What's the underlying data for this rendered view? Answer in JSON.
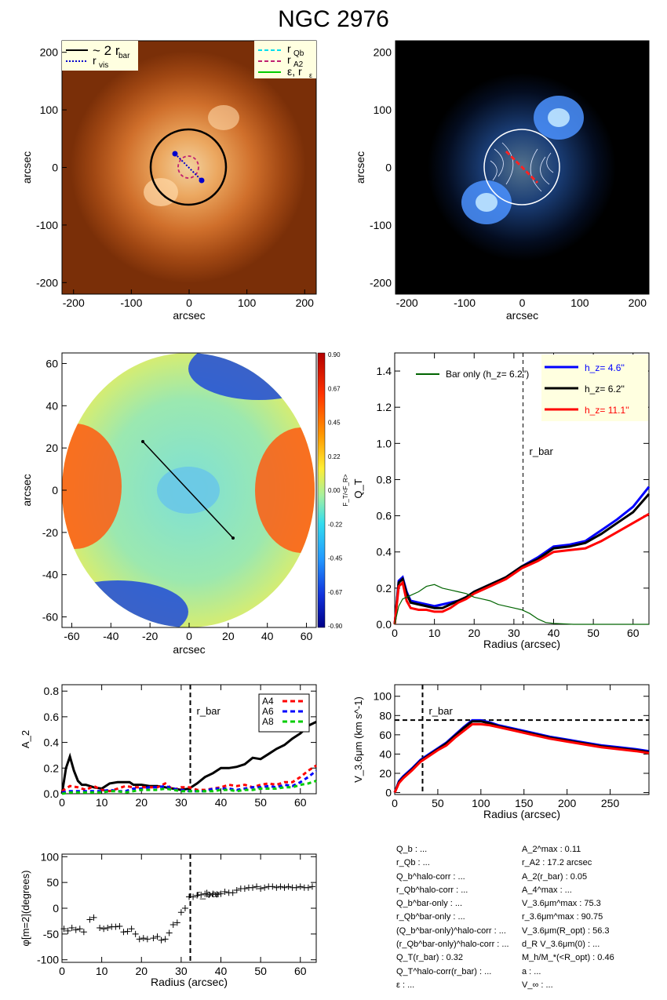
{
  "title": "NGC 2976",
  "colors": {
    "orange_bg": "#7a2f08",
    "blue_bg": "#000000",
    "hz_4_6": "#0000ff",
    "hz_6_2": "#000000",
    "hz_11_1": "#ff0000",
    "bar_only": "#006400",
    "legend_bg": "#ffffe0",
    "a4": "#ff0000",
    "a6": "#0000ff",
    "a8": "#00cc00"
  },
  "panel_images": {
    "tick_x": [
      "-200",
      "-100",
      "0",
      "100",
      "200"
    ],
    "tick_y": [
      "200",
      "100",
      "0",
      "-100",
      "-200"
    ],
    "xlabel": "arcsec",
    "ylabel": "arcsec",
    "legend_left": {
      "bar": "~ 2 r",
      "bar_sub": "bar",
      "vis": "r",
      "vis_sub": "vis"
    },
    "legend_right": {
      "qb": "r",
      "qb_sub": "Qb",
      "a2": "r",
      "a2_sub": "A2",
      "eps": "ε, r",
      "eps_sub": "ε"
    }
  },
  "panel_ratio": {
    "tick_x": [
      "-60",
      "-40",
      "-20",
      "0",
      "20",
      "40",
      "60"
    ],
    "tick_y": [
      "60",
      "40",
      "20",
      "0",
      "-20",
      "-40",
      "-60"
    ],
    "xlabel": "arcsec",
    "ylabel": "arcsec",
    "colorbar_ticks": [
      "0.90",
      "0.67",
      "0.45",
      "0.22",
      "0.00",
      "-0.22",
      "-0.45",
      "-0.67",
      "-0.90"
    ],
    "colorbar_label": "F_T/<F_R>"
  },
  "chart_data": [
    {
      "type": "line",
      "name": "QT",
      "ylabel": "Q_T",
      "xlabel": "Radius (arcsec)",
      "xlim": [
        0,
        64
      ],
      "ylim": [
        0,
        1.5
      ],
      "x_ticks": [
        0,
        10,
        20,
        30,
        40,
        50,
        60
      ],
      "y_ticks": [
        "0.0",
        "0.2",
        "0.4",
        "0.6",
        "0.8",
        "1.0",
        "1.2",
        "1.4"
      ],
      "vline": {
        "x": 32.3,
        "label": "r_bar"
      },
      "bar_only_label": "Bar only (h_z=  6.2'')",
      "series": [
        {
          "name": "h_z=  4.6''",
          "color": "#0000ff",
          "x": [
            0,
            1,
            2,
            3,
            4,
            6,
            8,
            10,
            12,
            14,
            16,
            18,
            20,
            24,
            28,
            32,
            36,
            40,
            44,
            48,
            52,
            56,
            60,
            64
          ],
          "y": [
            0,
            0.24,
            0.26,
            0.18,
            0.13,
            0.12,
            0.11,
            0.1,
            0.11,
            0.12,
            0.13,
            0.15,
            0.18,
            0.22,
            0.26,
            0.32,
            0.37,
            0.43,
            0.44,
            0.46,
            0.52,
            0.58,
            0.65,
            0.76
          ]
        },
        {
          "name": "h_z=  6.2''",
          "color": "#000000",
          "x": [
            0,
            1,
            2,
            3,
            4,
            6,
            8,
            10,
            12,
            14,
            16,
            18,
            20,
            24,
            28,
            32,
            36,
            40,
            44,
            48,
            52,
            56,
            60,
            64
          ],
          "y": [
            0,
            0.23,
            0.25,
            0.17,
            0.12,
            0.11,
            0.1,
            0.09,
            0.09,
            0.11,
            0.13,
            0.15,
            0.18,
            0.22,
            0.26,
            0.32,
            0.36,
            0.42,
            0.43,
            0.45,
            0.5,
            0.56,
            0.62,
            0.72
          ]
        },
        {
          "name": "h_z= 11.1''",
          "color": "#ff0000",
          "x": [
            0,
            1,
            2,
            3,
            4,
            6,
            8,
            10,
            12,
            14,
            16,
            18,
            20,
            24,
            28,
            32,
            36,
            40,
            44,
            48,
            52,
            56,
            60,
            64
          ],
          "y": [
            0,
            0.21,
            0.23,
            0.13,
            0.09,
            0.08,
            0.08,
            0.07,
            0.07,
            0.09,
            0.12,
            0.14,
            0.17,
            0.21,
            0.25,
            0.31,
            0.35,
            0.4,
            0.41,
            0.42,
            0.46,
            0.51,
            0.56,
            0.61
          ]
        },
        {
          "name": "Bar only",
          "color": "#006400",
          "x": [
            0,
            1,
            2,
            3,
            4,
            6,
            8,
            10,
            12,
            14,
            16,
            18,
            20,
            22,
            24,
            26,
            28,
            30,
            32,
            34,
            36,
            38,
            40,
            45,
            50,
            55,
            60,
            64
          ],
          "y": [
            0,
            0.1,
            0.14,
            0.15,
            0.16,
            0.18,
            0.21,
            0.22,
            0.2,
            0.19,
            0.18,
            0.17,
            0.15,
            0.14,
            0.13,
            0.11,
            0.1,
            0.09,
            0.08,
            0.06,
            0.03,
            0.01,
            0.005,
            0,
            0,
            0,
            0,
            0
          ]
        }
      ]
    },
    {
      "type": "line",
      "name": "A2",
      "ylabel": "A_2",
      "xlabel": "",
      "xlim": [
        0,
        64
      ],
      "ylim": [
        0,
        0.85
      ],
      "x_ticks": [
        0,
        10,
        20,
        30,
        40,
        50,
        60
      ],
      "y_ticks": [
        "0.0",
        "0.2",
        "0.4",
        "0.6",
        "0.8"
      ],
      "vline": {
        "x": 32.3,
        "label": "r_bar"
      },
      "legend": [
        "A4",
        "A6",
        "A8"
      ],
      "series": [
        {
          "name": "A2",
          "color": "#000000",
          "dash": false,
          "x": [
            0,
            1,
            2,
            3,
            4,
            5,
            6,
            8,
            10,
            12,
            14,
            16,
            17,
            18,
            20,
            22,
            24,
            26,
            28,
            30,
            32,
            34,
            36,
            38,
            40,
            42,
            44,
            46,
            48,
            50,
            52,
            54,
            56,
            58,
            60,
            62,
            64
          ],
          "y": [
            0,
            0.2,
            0.29,
            0.18,
            0.1,
            0.07,
            0.07,
            0.05,
            0.04,
            0.08,
            0.09,
            0.09,
            0.09,
            0.07,
            0.07,
            0.06,
            0.06,
            0.05,
            0.04,
            0.03,
            0.04,
            0.08,
            0.13,
            0.16,
            0.2,
            0.2,
            0.21,
            0.23,
            0.28,
            0.27,
            0.31,
            0.35,
            0.38,
            0.43,
            0.47,
            0.53,
            0.56
          ]
        },
        {
          "name": "A4",
          "color": "#ff0000",
          "dash": true,
          "x": [
            0,
            2,
            4,
            6,
            8,
            10,
            12,
            14,
            16,
            18,
            20,
            22,
            24,
            26,
            28,
            30,
            32,
            34,
            36,
            38,
            40,
            42,
            44,
            46,
            48,
            50,
            52,
            54,
            56,
            58,
            60,
            62,
            64
          ],
          "y": [
            0.02,
            0.06,
            0.05,
            0.03,
            0.06,
            0.03,
            0.02,
            0.04,
            0.06,
            0.05,
            0.05,
            0.05,
            0.05,
            0.08,
            0.03,
            0.05,
            0.05,
            0.03,
            0.03,
            0.04,
            0.05,
            0.07,
            0.06,
            0.07,
            0.05,
            0.07,
            0.08,
            0.07,
            0.09,
            0.09,
            0.13,
            0.18,
            0.22
          ]
        },
        {
          "name": "A6",
          "color": "#0000ff",
          "dash": true,
          "x": [
            0,
            2,
            4,
            6,
            8,
            10,
            12,
            14,
            16,
            18,
            20,
            22,
            24,
            26,
            28,
            30,
            32,
            34,
            36,
            38,
            40,
            42,
            44,
            46,
            48,
            50,
            52,
            54,
            56,
            58,
            60,
            62,
            64
          ],
          "y": [
            0.01,
            0.02,
            0.02,
            0.02,
            0.02,
            0.02,
            0.03,
            0.02,
            0.02,
            0.04,
            0.04,
            0.05,
            0.05,
            0.06,
            0.04,
            0.03,
            0.02,
            0.02,
            0.02,
            0.04,
            0.04,
            0.04,
            0.03,
            0.04,
            0.05,
            0.05,
            0.06,
            0.05,
            0.07,
            0.06,
            0.09,
            0.13,
            0.18
          ]
        },
        {
          "name": "A8",
          "color": "#00cc00",
          "dash": true,
          "x": [
            0,
            2,
            4,
            6,
            8,
            10,
            12,
            14,
            16,
            18,
            20,
            22,
            24,
            26,
            28,
            30,
            32,
            34,
            36,
            38,
            40,
            42,
            44,
            46,
            48,
            50,
            52,
            54,
            56,
            58,
            60,
            62,
            64
          ],
          "y": [
            0,
            0.01,
            0.01,
            0.01,
            0.01,
            0.01,
            0.02,
            0.02,
            0.01,
            0.02,
            0.03,
            0.03,
            0.03,
            0.04,
            0.03,
            0.02,
            0.02,
            0.02,
            0.02,
            0.02,
            0.03,
            0.03,
            0.02,
            0.03,
            0.03,
            0.04,
            0.04,
            0.04,
            0.05,
            0.05,
            0.07,
            0.08,
            0.1
          ]
        }
      ]
    },
    {
      "type": "line",
      "name": "Vc",
      "ylabel": "V_3.6μm  (km s^-1)",
      "xlabel": "Radius (arcsec)",
      "xlim": [
        0,
        295
      ],
      "ylim": [
        -2,
        112
      ],
      "x_ticks": [
        0,
        50,
        100,
        150,
        200,
        250
      ],
      "y_ticks": [
        "0",
        "20",
        "40",
        "60",
        "80",
        "100"
      ],
      "vline": {
        "x": 32.3,
        "label": "r_bar"
      },
      "hline": {
        "y": 75.3
      },
      "series": [
        {
          "name": "blue",
          "color": "#0000ff",
          "x": [
            0,
            5,
            10,
            20,
            30,
            40,
            50,
            60,
            70,
            80,
            90,
            100,
            110,
            120,
            140,
            160,
            180,
            200,
            220,
            240,
            260,
            280,
            295
          ],
          "y": [
            0,
            12,
            17,
            25,
            34,
            40,
            46,
            52,
            60,
            68,
            75,
            75,
            73,
            70,
            66,
            62,
            58,
            55,
            52,
            49,
            47,
            45,
            43
          ]
        },
        {
          "name": "black",
          "color": "#000000",
          "x": [
            0,
            5,
            10,
            20,
            30,
            40,
            50,
            60,
            70,
            80,
            90,
            100,
            110,
            120,
            140,
            160,
            180,
            200,
            220,
            240,
            260,
            280,
            295
          ],
          "y": [
            0,
            11,
            16,
            24,
            33,
            39,
            45,
            51,
            59,
            67,
            74,
            74,
            72,
            69,
            65,
            61,
            57,
            54,
            51,
            48,
            46,
            44,
            42
          ]
        },
        {
          "name": "red",
          "color": "#ff0000",
          "x": [
            0,
            5,
            10,
            20,
            30,
            40,
            50,
            60,
            70,
            80,
            90,
            100,
            110,
            120,
            140,
            160,
            180,
            200,
            220,
            240,
            260,
            280,
            295
          ],
          "y": [
            0,
            10,
            15,
            23,
            32,
            38,
            44,
            49,
            57,
            64,
            71,
            71,
            70,
            68,
            64,
            60,
            56,
            53,
            50,
            47,
            45,
            43,
            41
          ]
        }
      ]
    },
    {
      "type": "scatter",
      "name": "phase",
      "ylabel": "φ[m=2](degrees)",
      "xlabel": "Radius (arcsec)",
      "xlim": [
        0,
        64
      ],
      "ylim": [
        -105,
        105
      ],
      "x_ticks": [
        0,
        10,
        20,
        30,
        40,
        50,
        60
      ],
      "y_ticks": [
        "100",
        "50",
        "0",
        "-50",
        "-100"
      ],
      "vline": {
        "x": 32.3,
        "label": "r_bar"
      },
      "x": [
        0.5,
        1.5,
        2.5,
        3.5,
        4.5,
        5.5,
        7,
        8,
        9.5,
        10.5,
        11.5,
        12.5,
        13.5,
        14.5,
        15.5,
        16.5,
        17.5,
        18.5,
        19.5,
        20.5,
        21.5,
        23,
        24,
        25,
        26,
        27,
        28,
        29,
        30,
        31,
        32,
        33,
        34,
        35,
        36,
        37,
        38,
        39,
        40,
        41,
        42,
        43,
        44,
        45,
        46,
        47,
        48,
        49,
        50,
        51,
        52,
        53,
        54,
        55,
        56,
        57,
        58,
        59,
        60,
        61,
        62,
        63
      ],
      "y": [
        -40,
        -44,
        -38,
        -42,
        -40,
        -46,
        -22,
        -18,
        -38,
        -40,
        -38,
        -36,
        -36,
        -35,
        -46,
        -45,
        -40,
        -50,
        -60,
        -58,
        -60,
        -58,
        -55,
        -62,
        -60,
        -48,
        -32,
        -28,
        -8,
        0,
        22,
        22,
        25,
        26,
        28,
        26,
        28,
        27,
        28,
        32,
        30,
        30,
        35,
        38,
        38,
        40,
        40,
        42,
        38,
        40,
        42,
        42,
        40,
        42,
        40,
        42,
        40,
        40,
        42,
        40,
        40,
        42
      ]
    }
  ],
  "info_left": [
    "Q_b : ...",
    "r_Qb : ...",
    "Q_b^halo-corr : ...",
    "r_Qb^halo-corr : ...",
    "Q_b^bar-only : ...",
    "r_Qb^bar-only : ...",
    "(Q_b^bar-only)^halo-corr : ...",
    "(r_Qb^bar-only)^halo-corr : ...",
    "Q_T(r_bar) :  0.32",
    "Q_T^halo-corr(r_bar) : ...",
    "ε : ..."
  ],
  "info_right": [
    "A_2^max :  0.11",
    "r_A2 :  17.2 arcsec",
    "A_2(r_bar) :  0.05",
    "A_4^max : ...",
    "V_3.6μm^max :  75.3",
    "r_3.6μm^max :  90.75",
    "V_3.6μm(R_opt) :  56.3",
    "d_R V_3.6μm(0) : ...",
    "M_h/M_*(<R_opt) :  0.46",
    "a : ...",
    "V_∞ : ..."
  ]
}
